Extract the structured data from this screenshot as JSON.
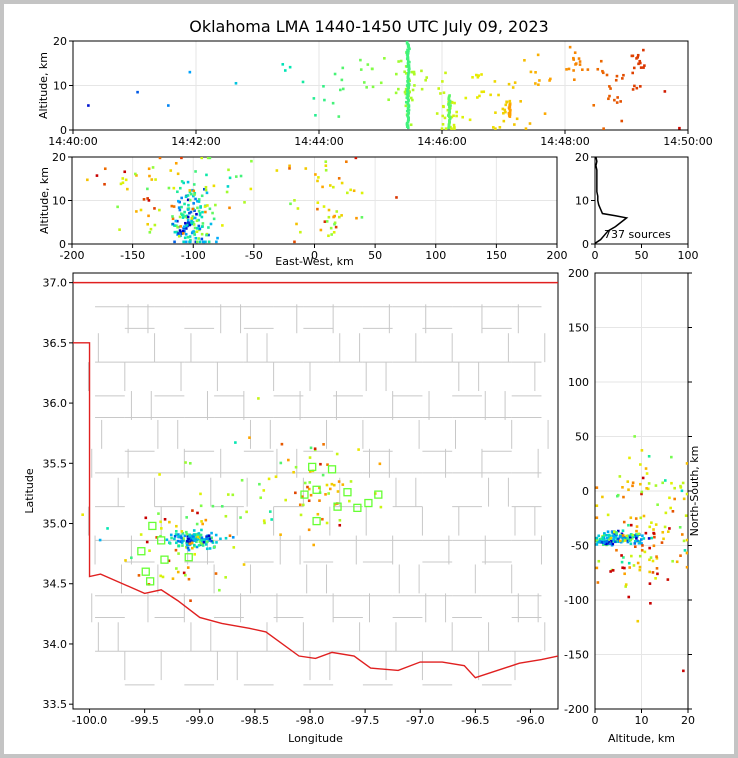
{
  "title": "Oklahoma LMA 1440-1450 UTC July 09, 2023",
  "colors": {
    "frame_bg": "#c4c4c4",
    "state_border": "#e02020",
    "county_lines": "#c8c8c8",
    "grid": "#e6e6e6",
    "station_marker": "#66ff33"
  },
  "chart_data": [
    {
      "id": "time-altitude",
      "type": "scatter",
      "title": "",
      "xlabel": "",
      "ylabel": "Altitude, km",
      "x_ticks": [
        "14:40:00",
        "14:42:00",
        "14:44:00",
        "14:46:00",
        "14:48:00",
        "14:50:00"
      ],
      "y_ticks": [
        "0",
        "10",
        "20"
      ],
      "xlim_minutes": [
        0,
        10
      ],
      "ylim": [
        0,
        20
      ],
      "grid": true,
      "color_encoding": "time (blue to red)",
      "clusters": [
        {
          "t_min": 0.25,
          "alt": 5.5,
          "n": 1
        },
        {
          "t_min": 1.05,
          "alt": 8.5,
          "n": 1
        },
        {
          "t_min": 1.55,
          "alt": 5.5,
          "n": 1
        },
        {
          "t_min": 1.9,
          "alt": 13,
          "n": 1
        },
        {
          "t_min": 2.65,
          "alt": 10.5,
          "n": 1
        },
        {
          "t_min": 3.4,
          "alt": 13,
          "n": 4
        },
        {
          "t_min": 3.9,
          "alt": 7,
          "n": 3
        },
        {
          "t_min": 4.35,
          "alt": 10,
          "n": 8
        },
        {
          "t_min": 4.9,
          "alt": 13,
          "n": 10
        },
        {
          "t_min": 5.45,
          "alt": 10,
          "n": 40
        },
        {
          "t_min": 6.1,
          "alt": 5,
          "n": 30
        },
        {
          "t_min": 6.6,
          "alt": 12,
          "n": 12
        },
        {
          "t_min": 7.1,
          "alt": 4.5,
          "n": 25
        },
        {
          "t_min": 7.6,
          "alt": 11,
          "n": 10
        },
        {
          "t_min": 8.2,
          "alt": 14,
          "n": 15
        },
        {
          "t_min": 8.7,
          "alt": 11,
          "n": 18
        },
        {
          "t_min": 9.15,
          "alt": 12,
          "n": 20
        },
        {
          "t_min": 9.7,
          "alt": 4,
          "n": 2
        }
      ]
    },
    {
      "id": "ew-altitude",
      "type": "scatter",
      "title": "",
      "xlabel": "East-West, km",
      "ylabel": "Altitude, km",
      "x_ticks": [
        "-200",
        "-150",
        "-100",
        "-50",
        "0",
        "50",
        "100",
        "150",
        "200"
      ],
      "y_ticks": [
        "0",
        "10",
        "20"
      ],
      "xlim": [
        -200,
        200
      ],
      "ylim": [
        0,
        20
      ],
      "grid": true,
      "clusters": [
        {
          "x": -100,
          "alt": 5,
          "sx": 8,
          "sa": 4,
          "n": 130,
          "hue": 0.3
        },
        {
          "x": -110,
          "alt": 4,
          "sx": 3,
          "sa": 1.5,
          "n": 20,
          "hue": 0.12
        },
        {
          "x": -130,
          "alt": 11,
          "sx": 20,
          "sa": 5,
          "n": 45,
          "hue": 0.7
        },
        {
          "x": -80,
          "alt": 14,
          "sx": 15,
          "sa": 5,
          "n": 25,
          "hue": 0.5
        },
        {
          "x": 10,
          "alt": 11,
          "sx": 18,
          "sa": 6,
          "n": 50,
          "hue": 0.7
        },
        {
          "x": -180,
          "alt": 15,
          "sx": 8,
          "sa": 2,
          "n": 4,
          "hue": 0.9
        }
      ]
    },
    {
      "id": "altitude-histogram",
      "type": "line",
      "title": "",
      "xlabel": "",
      "ylabel": "",
      "x_ticks": [
        "0",
        "50",
        "100"
      ],
      "y_ticks": [
        "0",
        "10",
        "20"
      ],
      "xlim": [
        0,
        100
      ],
      "ylim": [
        0,
        20
      ],
      "annotation": "737 sources",
      "profile": [
        {
          "alt": 0.3,
          "count": 1
        },
        {
          "alt": 1,
          "count": 6
        },
        {
          "alt": 2,
          "count": 10
        },
        {
          "alt": 3,
          "count": 14
        },
        {
          "alt": 4,
          "count": 22
        },
        {
          "alt": 5,
          "count": 28
        },
        {
          "alt": 6,
          "count": 34
        },
        {
          "alt": 6.5,
          "count": 22
        },
        {
          "alt": 7,
          "count": 8
        },
        {
          "alt": 8,
          "count": 6
        },
        {
          "alt": 9,
          "count": 4
        },
        {
          "alt": 10,
          "count": 3
        },
        {
          "alt": 11,
          "count": 3
        },
        {
          "alt": 12,
          "count": 2
        },
        {
          "alt": 13,
          "count": 2
        },
        {
          "alt": 14,
          "count": 2
        },
        {
          "alt": 15,
          "count": 2
        },
        {
          "alt": 16,
          "count": 2
        },
        {
          "alt": 17,
          "count": 2
        },
        {
          "alt": 18,
          "count": 1
        },
        {
          "alt": 19,
          "count": 2
        },
        {
          "alt": 20,
          "count": 1
        }
      ]
    },
    {
      "id": "plan-view",
      "type": "scatter",
      "title": "",
      "xlabel": "Longitude",
      "ylabel": "Latitude",
      "x_ticks": [
        "-100.0",
        "-99.5",
        "-99.0",
        "-98.5",
        "-98.0",
        "-97.5",
        "-97.0",
        "-96.5",
        "-96.0"
      ],
      "y_ticks": [
        "33.5",
        "34.0",
        "34.5",
        "35.0",
        "35.5",
        "36.0",
        "36.5",
        "37.0"
      ],
      "xlim": [
        -100.15,
        -95.75
      ],
      "ylim": [
        33.46,
        37.08
      ],
      "grid": false,
      "stations": [
        {
          "lon": -99.43,
          "lat": 34.98
        },
        {
          "lon": -99.35,
          "lat": 34.86
        },
        {
          "lon": -99.53,
          "lat": 34.77
        },
        {
          "lon": -99.32,
          "lat": 34.7
        },
        {
          "lon": -99.1,
          "lat": 34.72
        },
        {
          "lon": -99.49,
          "lat": 34.6
        },
        {
          "lon": -99.45,
          "lat": 34.52
        },
        {
          "lon": -97.94,
          "lat": 35.28
        },
        {
          "lon": -98.05,
          "lat": 35.24
        },
        {
          "lon": -97.8,
          "lat": 35.45
        },
        {
          "lon": -97.98,
          "lat": 35.47
        },
        {
          "lon": -97.66,
          "lat": 35.26
        },
        {
          "lon": -97.47,
          "lat": 35.17
        },
        {
          "lon": -97.38,
          "lat": 35.24
        },
        {
          "lon": -97.57,
          "lat": 35.13
        },
        {
          "lon": -97.75,
          "lat": 35.14
        },
        {
          "lon": -97.94,
          "lat": 35.02
        }
      ],
      "clusters": [
        {
          "lon": -99.05,
          "lat": 34.86,
          "slon": 0.12,
          "slat": 0.03,
          "n": 140,
          "hue": 0.3
        },
        {
          "lon": -99.08,
          "lat": 34.85,
          "slon": 0.03,
          "slat": 0.02,
          "n": 15,
          "hue": 0.12
        },
        {
          "lon": -99.2,
          "lat": 34.75,
          "slon": 0.25,
          "slat": 0.2,
          "n": 35,
          "hue": 0.8
        },
        {
          "lon": -97.85,
          "lat": 35.3,
          "slon": 0.25,
          "slat": 0.18,
          "n": 60,
          "hue": 0.7
        },
        {
          "lon": -98.7,
          "lat": 35.1,
          "slon": 0.25,
          "slat": 0.3,
          "n": 25,
          "hue": 0.45
        },
        {
          "lon": -99.4,
          "lat": 35.0,
          "slon": 0.3,
          "slat": 0.25,
          "n": 15,
          "hue": 0.55
        }
      ]
    },
    {
      "id": "ns-altitude",
      "type": "scatter",
      "title": "",
      "xlabel": "Altitude, km",
      "ylabel": "North-South, km",
      "x_ticks": [
        "0",
        "10",
        "20"
      ],
      "y_ticks": [
        "-200",
        "-150",
        "-100",
        "-50",
        "0",
        "50",
        "100",
        "150",
        "200"
      ],
      "xlim": [
        0,
        20
      ],
      "ylim": [
        -200,
        200
      ],
      "grid": true,
      "clusters": [
        {
          "alt": 5,
          "ns": -43,
          "sa": 3,
          "sn": 3,
          "n": 140,
          "hue": 0.3
        },
        {
          "alt": 3,
          "ns": -47,
          "sa": 1,
          "sn": 1.5,
          "n": 20,
          "hue": 0.12
        },
        {
          "alt": 11,
          "ns": -40,
          "sa": 5,
          "sn": 25,
          "n": 70,
          "hue": 0.7
        },
        {
          "alt": 12,
          "ns": 10,
          "sa": 5,
          "sn": 15,
          "n": 35,
          "hue": 0.6
        },
        {
          "alt": 10,
          "ns": -75,
          "sa": 5,
          "sn": 15,
          "n": 25,
          "hue": 0.85
        },
        {
          "alt": 19,
          "ns": -165,
          "sa": 0.3,
          "sn": 1,
          "n": 1,
          "hue": 1.0
        }
      ]
    }
  ]
}
